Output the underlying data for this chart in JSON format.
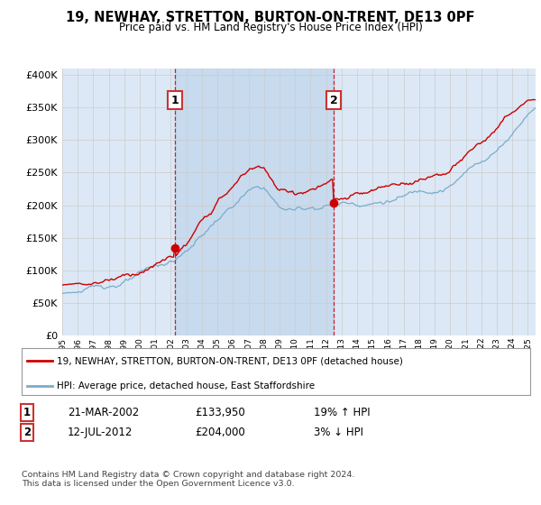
{
  "title": "19, NEWHAY, STRETTON, BURTON-ON-TRENT, DE13 0PF",
  "subtitle": "Price paid vs. HM Land Registry's House Price Index (HPI)",
  "background_color": "#ffffff",
  "plot_bg_color": "#dce8f5",
  "shaded_region_color": "#c5d9ee",
  "ylabel_color": "#222222",
  "sale1_year": 2002,
  "sale1_month": 3,
  "sale1_price": 133950,
  "sale2_year": 2012,
  "sale2_month": 7,
  "sale2_price": 204000,
  "legend_line1": "19, NEWHAY, STRETTON, BURTON-ON-TRENT, DE13 0PF (detached house)",
  "legend_line2": "HPI: Average price, detached house, East Staffordshire",
  "table_row1": [
    "1",
    "21-MAR-2002",
    "£133,950",
    "19% ↑ HPI"
  ],
  "table_row2": [
    "2",
    "12-JUL-2012",
    "£204,000",
    "3% ↓ HPI"
  ],
  "footnote": "Contains HM Land Registry data © Crown copyright and database right 2024.\nThis data is licensed under the Open Government Licence v3.0.",
  "x_start_year": 1995,
  "x_end_year": 2025,
  "ylim_min": 0,
  "ylim_max": 410000,
  "red_line_color": "#cc0000",
  "blue_line_color": "#7aaccc",
  "dashed_line_color": "#cc0000",
  "grid_color": "#cccccc",
  "sale_marker_color": "#cc0000",
  "box_color": "#cc3333"
}
